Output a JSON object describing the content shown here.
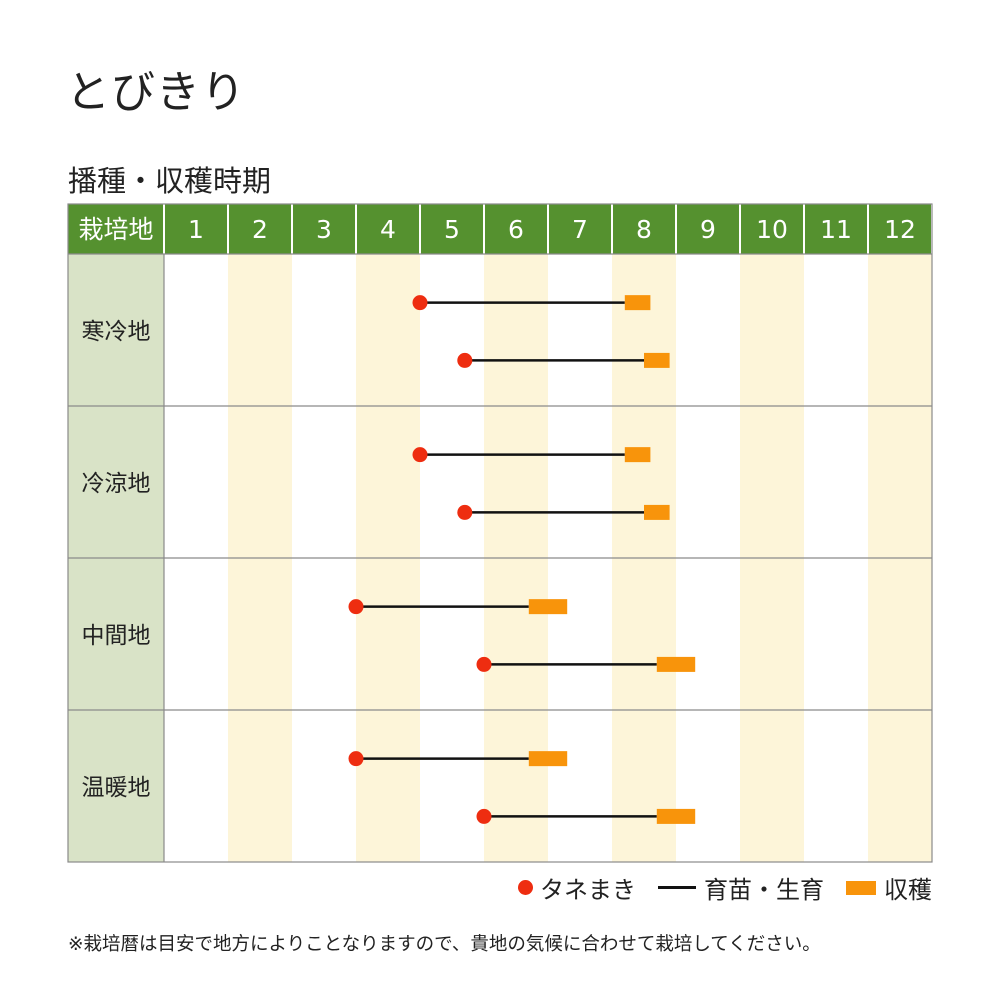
{
  "title": "とびきり",
  "subtitle": "播種・収穫時期",
  "colors": {
    "header_bg": "#55912f",
    "header_text": "#ffffff",
    "region_bg": "#d9e3c7",
    "stripe": "#fdf5d9",
    "grid": "#8a8a8a",
    "sowing": "#ee2d10",
    "growing": "#111111",
    "harvest": "#f8940b"
  },
  "chart_data": {
    "type": "timeline",
    "header_label": "栽培地",
    "months": [
      "1",
      "2",
      "3",
      "4",
      "5",
      "6",
      "7",
      "8",
      "9",
      "10",
      "11",
      "12"
    ],
    "regions": [
      {
        "name": "寒冷地",
        "rows": [
          {
            "sow": 5.0,
            "harvest_start": 8.2,
            "harvest_end": 8.6
          },
          {
            "sow": 5.7,
            "harvest_start": 8.5,
            "harvest_end": 8.9
          }
        ]
      },
      {
        "name": "冷涼地",
        "rows": [
          {
            "sow": 5.0,
            "harvest_start": 8.2,
            "harvest_end": 8.6
          },
          {
            "sow": 5.7,
            "harvest_start": 8.5,
            "harvest_end": 8.9
          }
        ]
      },
      {
        "name": "中間地",
        "rows": [
          {
            "sow": 4.0,
            "harvest_start": 6.7,
            "harvest_end": 7.3
          },
          {
            "sow": 6.0,
            "harvest_start": 8.7,
            "harvest_end": 9.3
          }
        ]
      },
      {
        "name": "温暖地",
        "rows": [
          {
            "sow": 4.0,
            "harvest_start": 6.7,
            "harvest_end": 7.3
          },
          {
            "sow": 6.0,
            "harvest_start": 8.7,
            "harvest_end": 9.3
          }
        ]
      }
    ],
    "legend": {
      "sowing": "タネまき",
      "growing": "育苗・生育",
      "harvest": "収穫"
    }
  },
  "note": "※栽培暦は目安で地方によりことなりますので、貴地の気候に合わせて栽培してください。"
}
